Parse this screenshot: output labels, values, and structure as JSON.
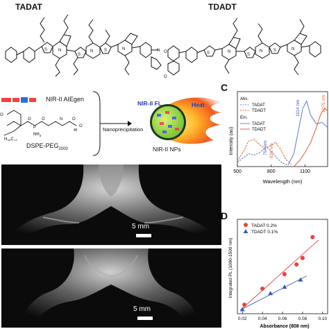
{
  "titles": {
    "left": "TADAT",
    "right": "TDADT"
  },
  "panel_b": {
    "aiegen_label": "NIR-II AIEgen",
    "dspe_label": "DSPE-PEG",
    "dspe_sub": "2000",
    "nano_label": "Nanoprecipitation",
    "nps_label": "NIR-II NPs",
    "fl_label": "NIR-II FL",
    "heat_label": "Heat",
    "subscript_45": "45",
    "nh4": "NH",
    "nh4_sub": "4",
    "h35": "H",
    "h35_sub": "35",
    "c17": "C",
    "c17_sub": "17"
  },
  "images": {
    "top_scale": "5 mm",
    "bottom_scale": "5 mm"
  },
  "colors": {
    "tadat": "#6f82c9",
    "tdadt": "#e06a3c",
    "tadat_pt": "#e8413a",
    "tdadt_pt": "#3a5bb0"
  },
  "chart_data": [
    {
      "type": "line",
      "panel": "C",
      "xlabel": "Wavelength (nm)",
      "ylabel": "Intensity (au)",
      "xlim": [
        500,
        1300
      ],
      "x_ticks": [
        "500",
        "800",
        "1100"
      ],
      "legend": {
        "abs_title": "Abs.",
        "em_title": "Em.",
        "entries": [
          "TADAT",
          "TDADT",
          "TADAT",
          "TDADT"
        ]
      },
      "annotations": [
        "754 nm",
        "838 nm",
        "1114 nm",
        "1275 nm"
      ],
      "series": [
        {
          "name": "TADAT",
          "group": "Abs.",
          "style": "dashed",
          "x": [
            500,
            550,
            600,
            650,
            700,
            754,
            800,
            850,
            900,
            950
          ],
          "y": [
            0.06,
            0.12,
            0.18,
            0.16,
            0.2,
            0.28,
            0.22,
            0.12,
            0.05,
            0.02
          ]
        },
        {
          "name": "TDADT",
          "group": "Abs.",
          "style": "dashed",
          "x": [
            500,
            550,
            600,
            650,
            700,
            750,
            800,
            838,
            880,
            930,
            980
          ],
          "y": [
            0.08,
            0.2,
            0.36,
            0.38,
            0.3,
            0.26,
            0.3,
            0.34,
            0.25,
            0.1,
            0.03
          ]
        },
        {
          "name": "TADAT",
          "group": "Em.",
          "style": "solid",
          "x": [
            950,
            1000,
            1050,
            1080,
            1114,
            1150,
            1200,
            1250,
            1300
          ],
          "y": [
            0.02,
            0.18,
            0.58,
            0.82,
            0.92,
            0.72,
            0.6,
            0.62,
            0.55
          ]
        },
        {
          "name": "TDADT",
          "group": "Em.",
          "style": "solid",
          "x": [
            1000,
            1050,
            1100,
            1150,
            1200,
            1240,
            1275,
            1300
          ],
          "y": [
            0.0,
            0.08,
            0.2,
            0.34,
            0.55,
            0.74,
            0.82,
            0.78
          ]
        }
      ]
    },
    {
      "type": "scatter",
      "panel": "D",
      "xlabel": "Absorbance (808 nm)",
      "ylabel": "Integrated PL (1000-1500 nm)",
      "xlim": [
        0.015,
        0.105
      ],
      "x_ticks": [
        0.02,
        0.04,
        0.06,
        0.08,
        0.1
      ],
      "x_tick_labels": [
        "0.02",
        "0.04",
        "0.06",
        "0.08",
        "0.10"
      ],
      "series": [
        {
          "name": "TADAT 0.2%",
          "marker": "circle",
          "x": [
            0.022,
            0.04,
            0.062,
            0.074,
            0.08,
            0.09
          ],
          "y": [
            0.06,
            0.26,
            0.44,
            0.56,
            0.64,
            0.9
          ]
        },
        {
          "name": "TDADT 0.1%",
          "marker": "triangle",
          "x": [
            0.02,
            0.048,
            0.062,
            0.078
          ],
          "y": [
            0.0,
            0.2,
            0.28,
            0.37
          ]
        }
      ]
    }
  ]
}
